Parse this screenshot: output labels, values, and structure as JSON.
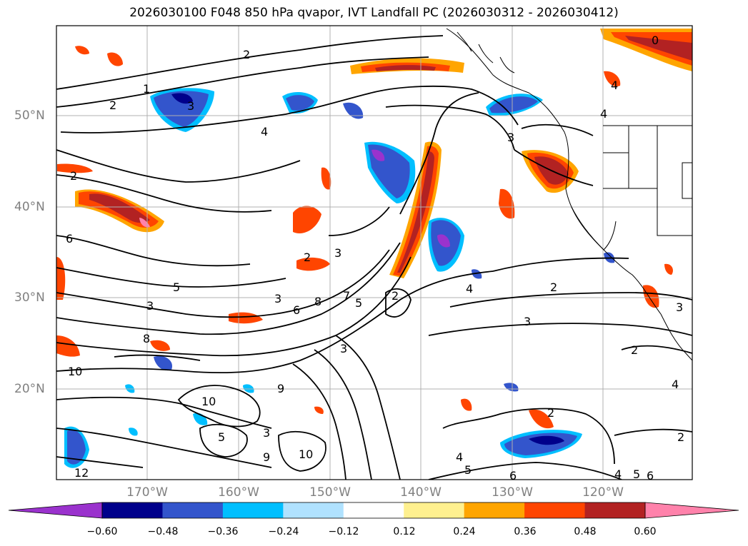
{
  "title": "2026030100 F048 850 hPa qvapor, IVT Landfall PC (2026030312 - 2026030412)",
  "axes": {
    "lat_labels": [
      "50°N",
      "40°N",
      "30°N",
      "20°N"
    ],
    "lon_labels": [
      "170°W",
      "160°W",
      "150°W",
      "140°W",
      "130°W",
      "120°W"
    ]
  },
  "colorbar": {
    "colors": [
      "#9a32cd",
      "#00008b",
      "#3355cc",
      "#00bfff",
      "#b0e2ff",
      "#ffffff",
      "#fff08f",
      "#ffa500",
      "#ff4500",
      "#b22222",
      "#ff82ab"
    ],
    "extend_low_color": "#9a32cd",
    "extend_high_color": "#ff82ab",
    "tick_labels": [
      "−0.60",
      "−0.48",
      "−0.36",
      "−0.24",
      "−0.12",
      "0.12",
      "0.24",
      "0.36",
      "0.48",
      "0.60"
    ]
  },
  "contour_labels": [
    "0",
    "1",
    "2",
    "3",
    "4",
    "2",
    "4",
    "3",
    "4",
    "2",
    "3",
    "6",
    "2",
    "2",
    "3",
    "5",
    "3",
    "6",
    "8",
    "7",
    "5",
    "3",
    "4",
    "2",
    "3",
    "8",
    "10",
    "9",
    "10",
    "5",
    "3",
    "9",
    "10",
    "2",
    "4",
    "5",
    "6",
    "4",
    "5",
    "6",
    "12",
    "2",
    "3",
    "2",
    "4"
  ]
}
